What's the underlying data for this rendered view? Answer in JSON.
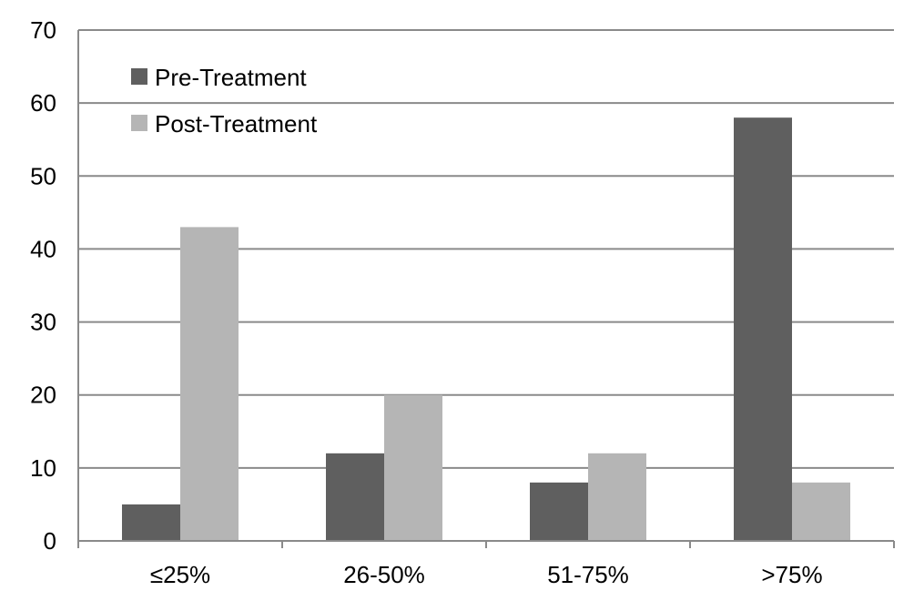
{
  "chart_data": {
    "type": "bar",
    "title": "",
    "xlabel": "",
    "ylabel": "",
    "categories": [
      "≤25%",
      "26-50%",
      "51-75%",
      ">75%"
    ],
    "series": [
      {
        "name": "Pre-Treatment",
        "values": [
          5,
          12,
          8,
          58
        ],
        "color": "#5f5f5f"
      },
      {
        "name": "Post-Treatment",
        "values": [
          43,
          20,
          12,
          8
        ],
        "color": "#b5b5b5"
      }
    ],
    "ylim": [
      0,
      70
    ],
    "y_ticks": [
      0,
      10,
      20,
      30,
      40,
      50,
      60,
      70
    ],
    "grid": true,
    "legend_position": "top-left"
  }
}
